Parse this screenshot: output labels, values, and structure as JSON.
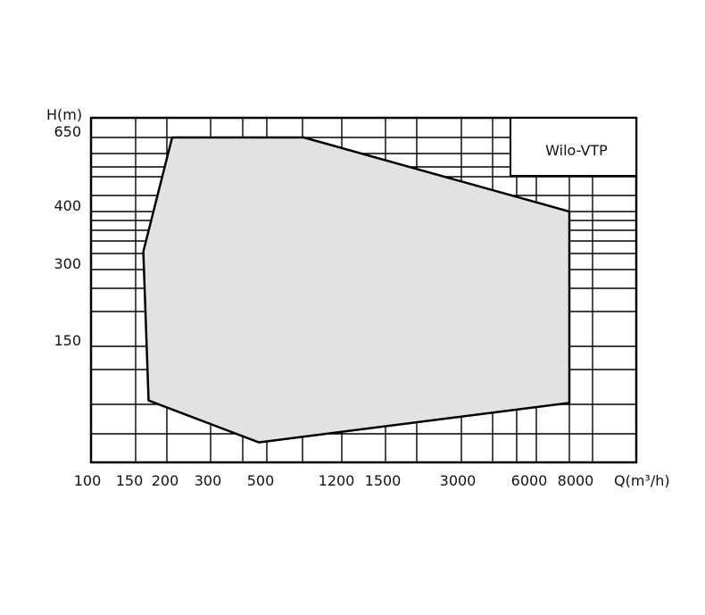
{
  "chart_data": {
    "type": "area",
    "title": "",
    "xlabel": "Q(m³/h)",
    "ylabel": "H(m)",
    "x_scale": "log",
    "y_scale": "nonlinear",
    "x_ticks": [
      100,
      150,
      200,
      300,
      500,
      1200,
      1500,
      3000,
      6000,
      8000
    ],
    "y_ticks": [
      150,
      300,
      400,
      650
    ],
    "grid": true,
    "legend_box": "Wilo-VTP",
    "legend_placement": "top-right",
    "fill_color": "#e2e2e2",
    "line_color": "#000000",
    "operating_range": [
      {
        "q": 210,
        "h": 650
      },
      {
        "q": 770,
        "h": 650
      },
      {
        "q": 8000,
        "h": 400
      },
      {
        "q": 8000,
        "h": 90
      },
      {
        "q": 465,
        "h": 63
      },
      {
        "q": 169,
        "h": 92
      },
      {
        "q": 161,
        "h": 328
      }
    ]
  }
}
